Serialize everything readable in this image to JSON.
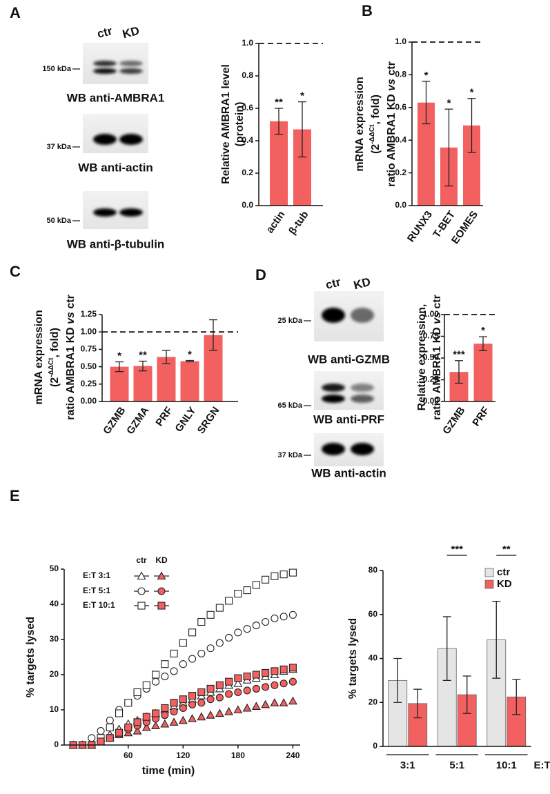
{
  "panel_labels": [
    "A",
    "B",
    "C",
    "D",
    "E"
  ],
  "blots": [
    {
      "lanes": [
        "ctr",
        "KD"
      ],
      "items": [
        {
          "marker": "150 kDa",
          "label": "WB anti-AMBRA1"
        },
        {
          "marker": "37 kDa",
          "label": "WB anti-actin"
        },
        {
          "marker": "50 kDa",
          "label": "WB anti-β-tubulin"
        }
      ]
    },
    {
      "lanes": [
        "ctr",
        "KD"
      ],
      "items": [
        {
          "marker": "25 kDa",
          "label": "WB anti-GZMB"
        },
        {
          "marker": "65 kDa",
          "label": "WB anti-PRF"
        },
        {
          "marker": "37 kDa",
          "label": "WB anti-actin"
        }
      ]
    }
  ],
  "chart_data": [
    {
      "type": "bar",
      "ylabel": [
        [
          "Relative AMBRA1 level"
        ],
        [
          "(protein)"
        ]
      ],
      "categories": [
        "actin",
        "β-tub"
      ],
      "values": [
        0.52,
        0.47
      ],
      "errors": [
        0.08,
        0.17
      ],
      "annotations": [
        "**",
        "*"
      ],
      "color": "#f26060",
      "ylim": [
        0,
        1.0
      ],
      "yticks": [
        {
          "value": 0,
          "label": "0.0"
        },
        0.2,
        0.4,
        0.6,
        0.8,
        {
          "value": 1,
          "label": "1.0"
        }
      ],
      "reference_line": 1.0
    },
    {
      "type": "bar",
      "ylabel": [
        [
          "mRNA expression"
        ],
        [
          "(2",
          "-ΔΔCt",
          ", fold)"
        ],
        [
          "ratio AMBRA1 KD ",
          "vs",
          " ctr"
        ]
      ],
      "categories": [
        "RUNX3",
        "T-BET",
        "EOMES"
      ],
      "values": [
        0.63,
        0.355,
        0.49
      ],
      "errors": [
        0.13,
        0.235,
        0.165
      ],
      "annotations": [
        "*",
        "*",
        "*"
      ],
      "color": "#f26060",
      "ylim": [
        0,
        1.0
      ],
      "yticks": [
        {
          "value": 0,
          "label": "0.0"
        },
        0.2,
        0.4,
        0.6,
        0.8,
        {
          "value": 1,
          "label": "1.0"
        }
      ],
      "reference_line": 1.0
    },
    {
      "type": "bar",
      "ylabel": [
        [
          "mRNA expression"
        ],
        [
          "(2",
          "-ΔΔCt",
          ", fold)"
        ],
        [
          "ratio AMBRA1 KD ",
          "vs",
          " ctr"
        ]
      ],
      "categories": [
        "GZMB",
        "GZMA",
        "PRF",
        "GNLY",
        "SRGN"
      ],
      "values": [
        0.5,
        0.51,
        0.64,
        0.58,
        0.955
      ],
      "errors": [
        0.07,
        0.07,
        0.095,
        0.01,
        0.22
      ],
      "annotations": [
        "*",
        "**",
        null,
        "*",
        null
      ],
      "color": "#f26060",
      "ylim": [
        0,
        1.25
      ],
      "yticks": [
        {
          "value": 0,
          "label": "0.00"
        },
        0.25,
        {
          "value": 0.5,
          "label": "0.50"
        },
        0.75,
        {
          "value": 1,
          "label": "1.00"
        },
        1.25
      ],
      "reference_line": 1.0
    },
    {
      "type": "bar",
      "ylabel": [
        [
          "Relative expression,"
        ],
        [
          "ratio AMBRA1 KD ",
          "vs",
          " ctr"
        ]
      ],
      "categories": [
        "GZMB",
        "PRF"
      ],
      "values": [
        0.34,
        0.665
      ],
      "errors": [
        0.13,
        0.08
      ],
      "annotations": [
        "***",
        "*"
      ],
      "color": "#f26060",
      "ylim": [
        0,
        1.0
      ],
      "yticks": [
        {
          "value": 0,
          "label": "0.00"
        },
        0.25,
        {
          "value": 0.5,
          "label": "0.50"
        },
        0.75,
        {
          "value": 1,
          "label": "1.00"
        }
      ],
      "reference_line": 1.0
    },
    {
      "type": "scatter",
      "xlabel": "time (min)",
      "ylabel": "% targets lysed",
      "x": [
        0,
        10,
        20,
        30,
        40,
        50,
        60,
        70,
        80,
        90,
        100,
        110,
        120,
        130,
        140,
        150,
        160,
        170,
        180,
        190,
        200,
        210,
        220,
        230,
        240
      ],
      "xlim": [
        -10,
        248
      ],
      "xticks": [
        60,
        120,
        180,
        240
      ],
      "ylim": [
        0,
        50
      ],
      "yticks": [
        0,
        10,
        20,
        30,
        40,
        50
      ],
      "legend": {
        "columns": [
          "ctr",
          "KD"
        ],
        "rows": [
          "E:T 3:1",
          "E:T 5:1",
          "E:T 10:1"
        ]
      },
      "series": [
        {
          "legend_row": 0,
          "legend_column": 0,
          "marker": "triangle",
          "color": "#ffffff",
          "values": [
            0,
            0,
            1,
            2,
            3,
            4.5,
            6,
            7,
            8,
            9,
            10,
            11,
            12,
            13,
            14,
            15,
            16,
            17,
            17.5,
            18.5,
            19,
            19.5,
            20,
            21,
            21.5
          ]
        },
        {
          "legend_row": 0,
          "legend_column": 1,
          "marker": "triangle",
          "color": "#f26060",
          "values": [
            0,
            0,
            0,
            1,
            2,
            3,
            3.5,
            4,
            5,
            5.5,
            6,
            6.5,
            7,
            7.5,
            8,
            8.5,
            9,
            9.5,
            10,
            10.5,
            11,
            11.5,
            12,
            12,
            12.5
          ]
        },
        {
          "legend_row": 1,
          "legend_column": 0,
          "marker": "circle",
          "color": "#ffffff",
          "values": [
            0,
            0,
            2,
            4,
            7,
            10,
            12,
            14,
            16,
            18,
            19.5,
            21,
            23,
            24.5,
            26,
            27.5,
            29,
            30.5,
            32,
            33,
            34,
            35,
            36,
            36.5,
            37
          ]
        },
        {
          "legend_row": 1,
          "legend_column": 1,
          "marker": "circle",
          "color": "#f26060",
          "values": [
            0,
            0,
            0,
            1,
            2,
            3,
            4.5,
            5.5,
            6.5,
            7.5,
            8.5,
            9.5,
            10.5,
            11.5,
            12,
            13,
            13.5,
            14.5,
            15,
            15.5,
            16,
            16.5,
            17,
            17.5,
            18
          ]
        },
        {
          "legend_row": 2,
          "legend_column": 0,
          "marker": "square",
          "color": "#ffffff",
          "values": [
            0,
            0,
            0,
            2,
            5,
            9,
            12,
            15,
            17,
            20,
            23,
            26,
            29,
            32,
            35,
            37,
            39,
            41,
            43,
            44,
            45.5,
            47,
            48,
            48.5,
            49
          ]
        },
        {
          "legend_row": 2,
          "legend_column": 1,
          "marker": "square",
          "color": "#f26060",
          "values": [
            0,
            0,
            0,
            1,
            2,
            3.5,
            5,
            6.5,
            8,
            9,
            10.5,
            12,
            13,
            14,
            15,
            16,
            17,
            18,
            19,
            19.5,
            20,
            20.5,
            21,
            21.5,
            22
          ]
        }
      ]
    },
    {
      "type": "grouped_bar",
      "ylabel": "% targets lysed",
      "xlabel": "E:T",
      "categories": [
        "3:1",
        "5:1",
        "10:1"
      ],
      "ylim": [
        0,
        80
      ],
      "yticks": [
        0,
        20,
        40,
        60,
        80
      ],
      "series": [
        {
          "name": "ctr",
          "color": "#e5e5e5",
          "values": [
            30,
            44.5,
            48.5
          ],
          "errors": [
            10,
            14.5,
            17.5
          ]
        },
        {
          "name": "KD",
          "color": "#f26060",
          "values": [
            19.5,
            23.5,
            22.5
          ],
          "errors": [
            6.5,
            8.5,
            8
          ]
        }
      ],
      "comparisons": [
        {
          "category": 1,
          "label": "***"
        },
        {
          "category": 2,
          "label": "**"
        }
      ]
    }
  ]
}
